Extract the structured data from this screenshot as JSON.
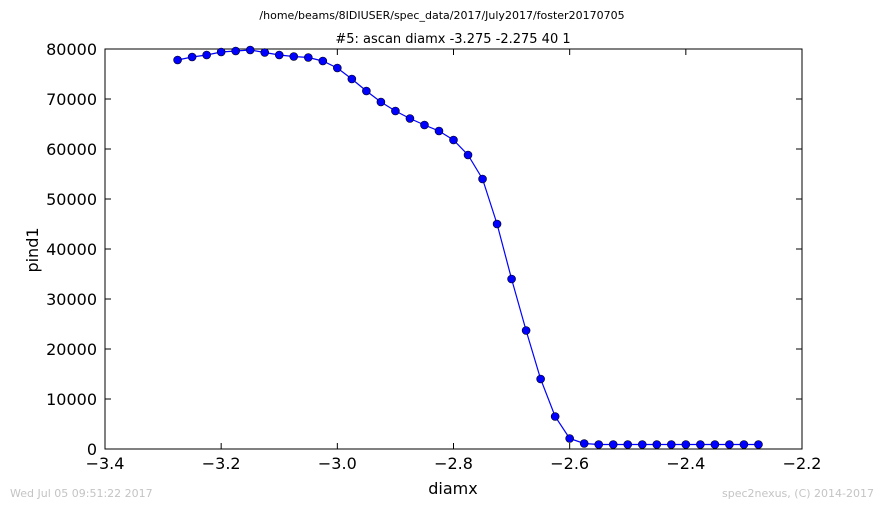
{
  "figure": {
    "suptitle": "/home/beams/8IDIUSER/spec_data/2017/July2017/foster20170705",
    "footer_left": "Wed Jul 05 09:51:22 2017",
    "footer_right": "spec2nexus, (C) 2014-2017"
  },
  "colors": {
    "series": "#0000ff",
    "marker_fill": "#0000ff",
    "marker_edge": "#000000",
    "axes": "#000000",
    "footer_text": "#c4c4c4",
    "background": "#ffffff"
  },
  "chart_data": {
    "type": "line",
    "title": "#5: ascan  diamx -3.275 -2.275  40 1",
    "xlabel": "diamx",
    "ylabel": "pind1",
    "xlim": [
      -3.4,
      -2.2
    ],
    "ylim": [
      0,
      80000
    ],
    "xticks": [
      -3.4,
      -3.2,
      -3.0,
      -2.8,
      -2.6,
      -2.4,
      -2.2
    ],
    "xtick_labels": [
      "−3.4",
      "−3.2",
      "−3.0",
      "−2.8",
      "−2.6",
      "−2.4",
      "−2.2"
    ],
    "yticks": [
      0,
      10000,
      20000,
      30000,
      40000,
      50000,
      60000,
      70000,
      80000
    ],
    "ytick_labels": [
      "0",
      "10000",
      "20000",
      "30000",
      "40000",
      "50000",
      "60000",
      "70000",
      "80000"
    ],
    "grid": false,
    "legend": "none",
    "markers": "circle",
    "series": [
      {
        "x": [
          -3.275,
          -3.25,
          -3.225,
          -3.2,
          -3.175,
          -3.15,
          -3.125,
          -3.1,
          -3.075,
          -3.05,
          -3.025,
          -3.0,
          -2.975,
          -2.95,
          -2.925,
          -2.9,
          -2.875,
          -2.85,
          -2.825,
          -2.8,
          -2.775,
          -2.75,
          -2.725,
          -2.7,
          -2.675,
          -2.65,
          -2.625,
          -2.6,
          -2.575,
          -2.55,
          -2.525,
          -2.5,
          -2.475,
          -2.45,
          -2.425,
          -2.4,
          -2.375,
          -2.35,
          -2.325,
          -2.3,
          -2.275
        ],
        "y": [
          77800,
          78400,
          78800,
          79400,
          79600,
          79800,
          79300,
          78800,
          78500,
          78300,
          77600,
          76200,
          74000,
          71600,
          69400,
          67600,
          66100,
          64800,
          63600,
          61800,
          58800,
          54000,
          45000,
          34000,
          23700,
          14000,
          6500,
          2100,
          1100,
          900,
          900,
          900,
          900,
          900,
          900,
          900,
          900,
          900,
          900,
          900,
          900
        ]
      }
    ]
  }
}
